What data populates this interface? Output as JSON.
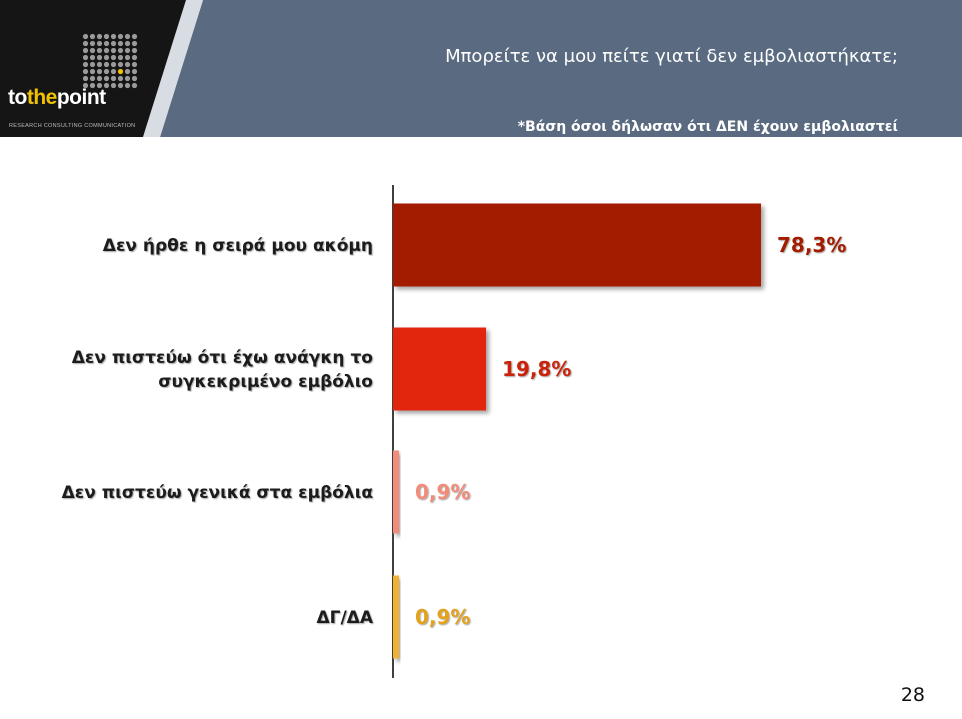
{
  "header": {
    "question": "Μπορείτε να μου πείτε γιατί δεν εμβολιαστήκατε;",
    "base_note": "*Βάση όσοι δήλωσαν ότι ΔΕΝ έχουν εμβολιαστεί"
  },
  "logo": {
    "word_part1": "to",
    "word_part2": "the",
    "word_part3": "point",
    "tagline": "RESEARCH  CONSULTING  COMMUNICATION"
  },
  "page_number": "28",
  "colors": {
    "header_band": "#5a6b81",
    "logo_panel": "#151515",
    "logo_accent": "#f2c100"
  },
  "chart_data": {
    "type": "bar",
    "orientation": "horizontal",
    "categories": [
      [
        "Δεν ήρθε η σειρά μου ακόμη"
      ],
      [
        "Δεν πιστεύω ότι έχω ανάγκη το",
        "συγκεκριμένο εμβόλιο"
      ],
      [
        "Δεν πιστεύω γενικά στα εμβόλια"
      ],
      [
        "ΔΓ/ΔΑ"
      ]
    ],
    "values": [
      78.3,
      19.8,
      0.9,
      0.9
    ],
    "value_labels": [
      "78,3%",
      "19,8%",
      "0,9%",
      "0,9%"
    ],
    "bar_colors": [
      "#a31d06",
      "#e2270a",
      "#f28b78",
      "#f0b232"
    ],
    "label_colors": [
      "#a31d06",
      "#c92308",
      "#f28b78",
      "#e2a21e"
    ],
    "xlim": [
      0,
      100
    ],
    "grid": false,
    "legend": "none"
  }
}
